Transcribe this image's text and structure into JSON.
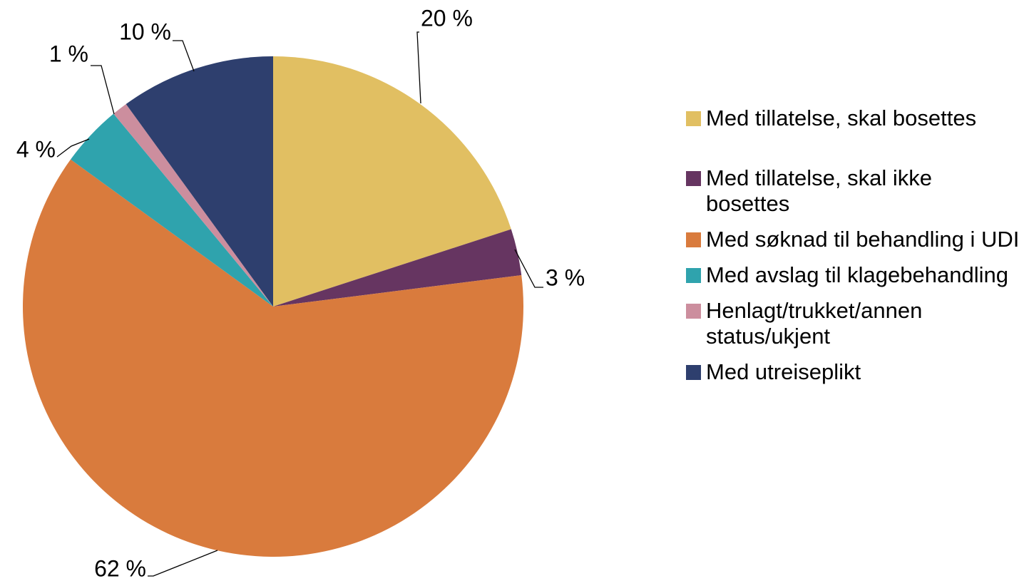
{
  "chart_data": {
    "type": "pie",
    "categories": [
      "Med tillatelse, skal bosettes",
      "Med tillatelse, skal ikke bosettes",
      "Med søknad til behandling i UDI",
      "Med avslag til klagebehandling",
      "Henlagt/trukket/annen status/ukjent",
      "Med utreiseplikt"
    ],
    "values": [
      20,
      3,
      62,
      4,
      1,
      10
    ],
    "value_labels": [
      "20 %",
      "3 %",
      "62 %",
      "4 %",
      "1 %",
      "10 %"
    ],
    "colors": [
      "#e1bf62",
      "#663561",
      "#d97b3d",
      "#2fa3ad",
      "#cc8e9e",
      "#2e3f6e"
    ],
    "legend": "right"
  }
}
